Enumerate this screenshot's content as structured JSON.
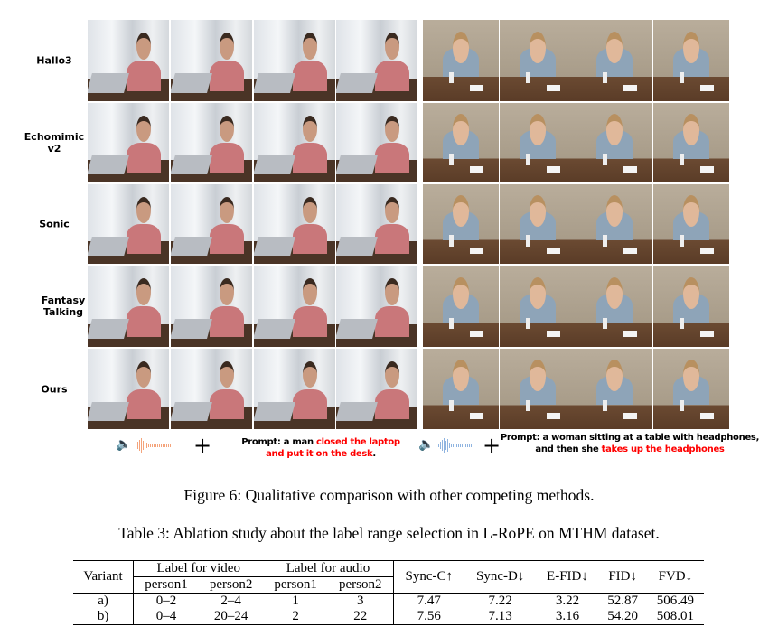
{
  "figure": {
    "row_labels": [
      "Hallo3",
      "Echomimic v2",
      "Sonic",
      "Fantasy Talking",
      "Ours"
    ],
    "left_prompt": {
      "prefix": "Prompt: a man ",
      "highlight1": "closed the laptop",
      "highlight2": "and put it on the desk",
      "suffix": "."
    },
    "right_prompt": {
      "line1": "Prompt: a woman sitting at a table with headphones,",
      "prefix2": "and then she ",
      "highlight": "takes up the headphones"
    },
    "plus": "+",
    "icons": [
      "speaker-icon",
      "audio-waveform-icon"
    ],
    "colors": {
      "highlight": "#ff0000",
      "left_wave": "#f4a47c",
      "right_wave": "#8fb4e0"
    },
    "caption": "Figure 6: Qualitative comparison with other competing methods."
  },
  "table": {
    "caption": "Table 3: Ablation study about the label range selection in L-RoPE on MTHM dataset.",
    "headers": {
      "variant": "Variant",
      "video": "Label for video",
      "audio": "Label for audio",
      "sub": [
        "person1",
        "person2",
        "person1",
        "person2"
      ],
      "metrics": [
        "Sync-C↑",
        "Sync-D↓",
        "E-FID↓",
        "FID↓",
        "FVD↓"
      ]
    },
    "rows": [
      [
        "a)",
        "0–2",
        "2–4",
        "1",
        "3",
        "7.47",
        "7.22",
        "3.22",
        "52.87",
        "506.49"
      ],
      [
        "b)",
        "0–4",
        "20–24",
        "2",
        "22",
        "7.56",
        "7.13",
        "3.16",
        "54.20",
        "508.01"
      ]
    ]
  }
}
